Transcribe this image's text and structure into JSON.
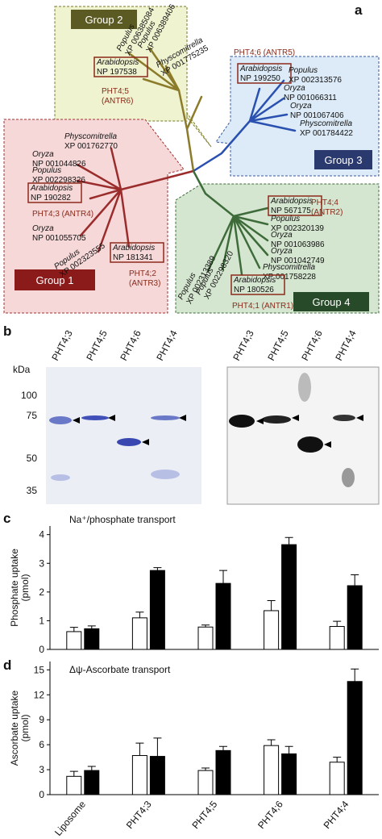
{
  "panel_labels": [
    "a",
    "b",
    "c",
    "d"
  ],
  "tree": {
    "groups": [
      "Group 1",
      "Group 2",
      "Group 3",
      "Group 4"
    ],
    "leaves": [
      {
        "species": "Populus",
        "accession": "XP 006385084"
      },
      {
        "species": "Populus",
        "accession": "XP 006389406"
      },
      {
        "species": "Physcomitrella",
        "accession": "XP 001775235"
      },
      {
        "species": "Arabidopsis",
        "accession": "NP 197538",
        "gene": [
          "PHT4;5",
          "(ANTR6)"
        ]
      },
      {
        "species": "Arabidopsis",
        "accession": "NP 199250",
        "gene": [
          "PHT4;6 (ANTR5)"
        ]
      },
      {
        "species": "Populus",
        "accession": "XP 002313576"
      },
      {
        "species": "Oryza",
        "accession": "NP 001066311"
      },
      {
        "species": "Oryza",
        "accession": "NP 001067406"
      },
      {
        "species": "Physcomitrella",
        "accession": "XP 001784422"
      },
      {
        "species": "Physcomitrella",
        "accession": "XP 001762770"
      },
      {
        "species": "Oryza",
        "accession": "NP 001044826"
      },
      {
        "species": "Populus",
        "accession": "XP 002298326"
      },
      {
        "species": "Arabidopsis",
        "accession": "NP 190282",
        "gene": [
          "PHT4;3 (ANTR4)"
        ]
      },
      {
        "species": "Oryza",
        "accession": "NP 001055705"
      },
      {
        "species": "Populus",
        "accession": "XP 002323555"
      },
      {
        "species": "Arabidopsis",
        "accession": "NP 181341",
        "gene": [
          "PHT4;2",
          "(ANTR3)"
        ]
      },
      {
        "species": "Arabidopsis",
        "accession": "NP 567175",
        "gene": [
          "PHT4;4",
          "(ANTR2)"
        ]
      },
      {
        "species": "Populus",
        "accession": "XP 002320139"
      },
      {
        "species": "Oryza",
        "accession": "NP 001063986"
      },
      {
        "species": "Oryza",
        "accession": "NP 001042749"
      },
      {
        "species": "Physcomitrella",
        "accession": "XP 001758228"
      },
      {
        "species": "Populus",
        "accession": "XP 002313389"
      },
      {
        "species": "Populus",
        "accession": "XP 002298320"
      },
      {
        "species": "Arabidopsis",
        "accession": "NP 180526",
        "gene": [
          "PHT4;1 (ANTR1)"
        ]
      }
    ]
  },
  "blot": {
    "lanes": [
      "PHT4;3",
      "PHT4;5",
      "PHT4;6",
      "PHT4;4"
    ],
    "unit": "kDa",
    "markers": [
      100,
      75,
      50,
      35
    ]
  },
  "chart_data": [
    {
      "type": "bar",
      "title": "Na⁺/phosphate transport",
      "y_label": [
        "Phosphate uptake",
        "(pmol)"
      ],
      "categories": [
        null,
        null,
        null,
        null,
        null
      ],
      "series": [
        {
          "color": "#ffffff",
          "values": [
            0.62,
            1.1,
            0.78,
            1.35,
            0.8
          ],
          "errors": [
            0.15,
            0.2,
            0.07,
            0.35,
            0.18
          ]
        },
        {
          "color": "#000000",
          "values": [
            0.72,
            2.75,
            2.3,
            3.65,
            2.22
          ],
          "errors": [
            0.1,
            0.1,
            0.45,
            0.25,
            0.38
          ]
        }
      ],
      "ylim": [
        0,
        4.3
      ],
      "yticks": [
        0,
        1,
        2,
        3,
        4
      ]
    },
    {
      "type": "bar",
      "title": "Δψ-Ascorbate transport",
      "y_label": [
        "Ascorbate uptake",
        "(pmol)"
      ],
      "categories": [
        "Liposome",
        "PHT4;3",
        "PHT4;5",
        "PHT4;6",
        "PHT4;4"
      ],
      "series": [
        {
          "color": "#ffffff",
          "values": [
            2.2,
            4.7,
            2.9,
            5.9,
            3.9
          ],
          "errors": [
            0.6,
            1.5,
            0.3,
            0.7,
            0.6
          ]
        },
        {
          "color": "#000000",
          "values": [
            2.9,
            4.6,
            5.3,
            4.9,
            13.6
          ],
          "errors": [
            0.5,
            2.2,
            0.5,
            0.9,
            1.5
          ]
        }
      ],
      "ylim": [
        0,
        16
      ],
      "yticks": [
        0,
        3,
        6,
        9,
        12,
        15
      ]
    }
  ]
}
